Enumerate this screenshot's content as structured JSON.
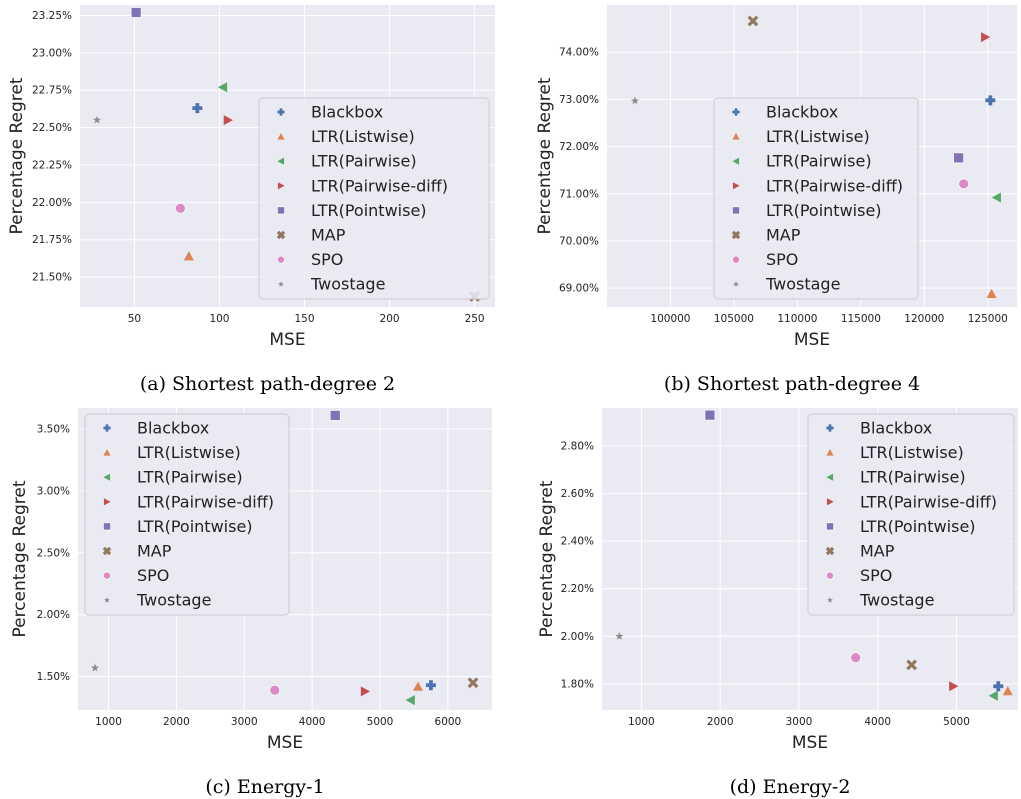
{
  "series_styles": {
    "Blackbox": {
      "color": "#4c72b0",
      "marker": "plus"
    },
    "LTR(Listwise)": {
      "color": "#dd8452",
      "marker": "triangle-up"
    },
    "LTR(Pairwise)": {
      "color": "#55a868",
      "marker": "triangle-left"
    },
    "LTR(Pairwise-diff)": {
      "color": "#c44e52",
      "marker": "triangle-right"
    },
    "LTR(Pointwise)": {
      "color": "#8172b3",
      "marker": "square"
    },
    "MAP": {
      "color": "#937860",
      "marker": "x"
    },
    "SPO": {
      "color": "#da8bc3",
      "marker": "circle"
    },
    "Twostage": {
      "color": "#8c8c8c",
      "marker": "star"
    }
  },
  "chart_data": [
    {
      "type": "scatter",
      "caption": "(a) Shortest path-degree 2",
      "xlabel": "MSE",
      "ylabel": "Percentage Regret",
      "xlim": [
        18,
        262
      ],
      "ylim": [
        21.3,
        23.32
      ],
      "xticks": [
        50,
        100,
        150,
        200,
        250
      ],
      "xtick_labels": [
        "50",
        "100",
        "150",
        "200",
        "250"
      ],
      "yticks": [
        21.5,
        21.75,
        22.0,
        22.25,
        22.5,
        22.75,
        23.0,
        23.25
      ],
      "ytick_labels": [
        "21.50%",
        "21.75%",
        "22.00%",
        "22.25%",
        "22.50%",
        "22.75%",
        "23.00%",
        "23.25%"
      ],
      "legend_position": "center-right",
      "series": [
        {
          "name": "Blackbox",
          "x": 87,
          "y": 22.63
        },
        {
          "name": "LTR(Listwise)",
          "x": 82,
          "y": 21.64
        },
        {
          "name": "LTR(Pairwise)",
          "x": 102,
          "y": 22.77
        },
        {
          "name": "LTR(Pairwise-diff)",
          "x": 105,
          "y": 22.55
        },
        {
          "name": "LTR(Pointwise)",
          "x": 51,
          "y": 23.27
        },
        {
          "name": "MAP",
          "x": 250,
          "y": 21.37
        },
        {
          "name": "SPO",
          "x": 77,
          "y": 21.96
        },
        {
          "name": "Twostage",
          "x": 28,
          "y": 22.55
        }
      ]
    },
    {
      "type": "scatter",
      "caption": "(b) Shortest path-degree 4",
      "xlabel": "MSE",
      "ylabel": "Percentage Regret",
      "xlim": [
        95000,
        127300
      ],
      "ylim": [
        68.6,
        75.0
      ],
      "xticks": [
        100000,
        105000,
        110000,
        115000,
        120000,
        125000
      ],
      "xtick_labels": [
        "100000",
        "105000",
        "110000",
        "115000",
        "120000",
        "125000"
      ],
      "yticks": [
        69,
        70,
        71,
        72,
        73,
        74
      ],
      "ytick_labels": [
        "69.00%",
        "70.00%",
        "71.00%",
        "72.00%",
        "73.00%",
        "74.00%"
      ],
      "legend_position": "center",
      "series": [
        {
          "name": "Blackbox",
          "x": 125200,
          "y": 72.98
        },
        {
          "name": "LTR(Listwise)",
          "x": 125300,
          "y": 68.88
        },
        {
          "name": "LTR(Pairwise)",
          "x": 125700,
          "y": 70.92
        },
        {
          "name": "LTR(Pairwise-diff)",
          "x": 124800,
          "y": 74.32
        },
        {
          "name": "LTR(Pointwise)",
          "x": 122700,
          "y": 71.76
        },
        {
          "name": "MAP",
          "x": 106500,
          "y": 74.66
        },
        {
          "name": "SPO",
          "x": 123100,
          "y": 71.21
        },
        {
          "name": "Twostage",
          "x": 97200,
          "y": 72.97
        }
      ]
    },
    {
      "type": "scatter",
      "caption": "(c) Energy-1",
      "xlabel": "MSE",
      "ylabel": "Percentage Regret",
      "xlim": [
        550,
        6650
      ],
      "ylim": [
        1.23,
        3.67
      ],
      "xticks": [
        1000,
        2000,
        3000,
        4000,
        5000,
        6000
      ],
      "xtick_labels": [
        "1000",
        "2000",
        "3000",
        "4000",
        "5000",
        "6000"
      ],
      "yticks": [
        1.5,
        2.0,
        2.5,
        3.0,
        3.5
      ],
      "ytick_labels": [
        "1.50%",
        "2.00%",
        "2.50%",
        "3.00%",
        "3.50%"
      ],
      "legend_position": "upper-left",
      "series": [
        {
          "name": "Blackbox",
          "x": 5750,
          "y": 1.43
        },
        {
          "name": "LTR(Listwise)",
          "x": 5560,
          "y": 1.42
        },
        {
          "name": "LTR(Pairwise)",
          "x": 5450,
          "y": 1.31
        },
        {
          "name": "LTR(Pairwise-diff)",
          "x": 4780,
          "y": 1.38
        },
        {
          "name": "LTR(Pointwise)",
          "x": 4340,
          "y": 3.61
        },
        {
          "name": "MAP",
          "x": 6370,
          "y": 1.45
        },
        {
          "name": "SPO",
          "x": 3450,
          "y": 1.39
        },
        {
          "name": "Twostage",
          "x": 800,
          "y": 1.57
        }
      ]
    },
    {
      "type": "scatter",
      "caption": "(d) Energy-2",
      "xlabel": "MSE",
      "ylabel": "Percentage Regret",
      "xlim": [
        500,
        5780
      ],
      "ylim": [
        1.69,
        2.96
      ],
      "xticks": [
        1000,
        2000,
        3000,
        4000,
        5000
      ],
      "xtick_labels": [
        "1000",
        "2000",
        "3000",
        "4000",
        "5000"
      ],
      "yticks": [
        1.8,
        2.0,
        2.2,
        2.4,
        2.6,
        2.8
      ],
      "ytick_labels": [
        "1.80%",
        "2.00%",
        "2.20%",
        "2.40%",
        "2.60%",
        "2.80%"
      ],
      "legend_position": "upper-right",
      "series": [
        {
          "name": "Blackbox",
          "x": 5530,
          "y": 1.79
        },
        {
          "name": "LTR(Listwise)",
          "x": 5650,
          "y": 1.77
        },
        {
          "name": "LTR(Pairwise)",
          "x": 5470,
          "y": 1.75
        },
        {
          "name": "LTR(Pairwise-diff)",
          "x": 4960,
          "y": 1.79
        },
        {
          "name": "LTR(Pointwise)",
          "x": 1870,
          "y": 2.93
        },
        {
          "name": "MAP",
          "x": 4430,
          "y": 1.88
        },
        {
          "name": "SPO",
          "x": 3720,
          "y": 1.91
        },
        {
          "name": "Twostage",
          "x": 720,
          "y": 2.0
        }
      ]
    }
  ]
}
